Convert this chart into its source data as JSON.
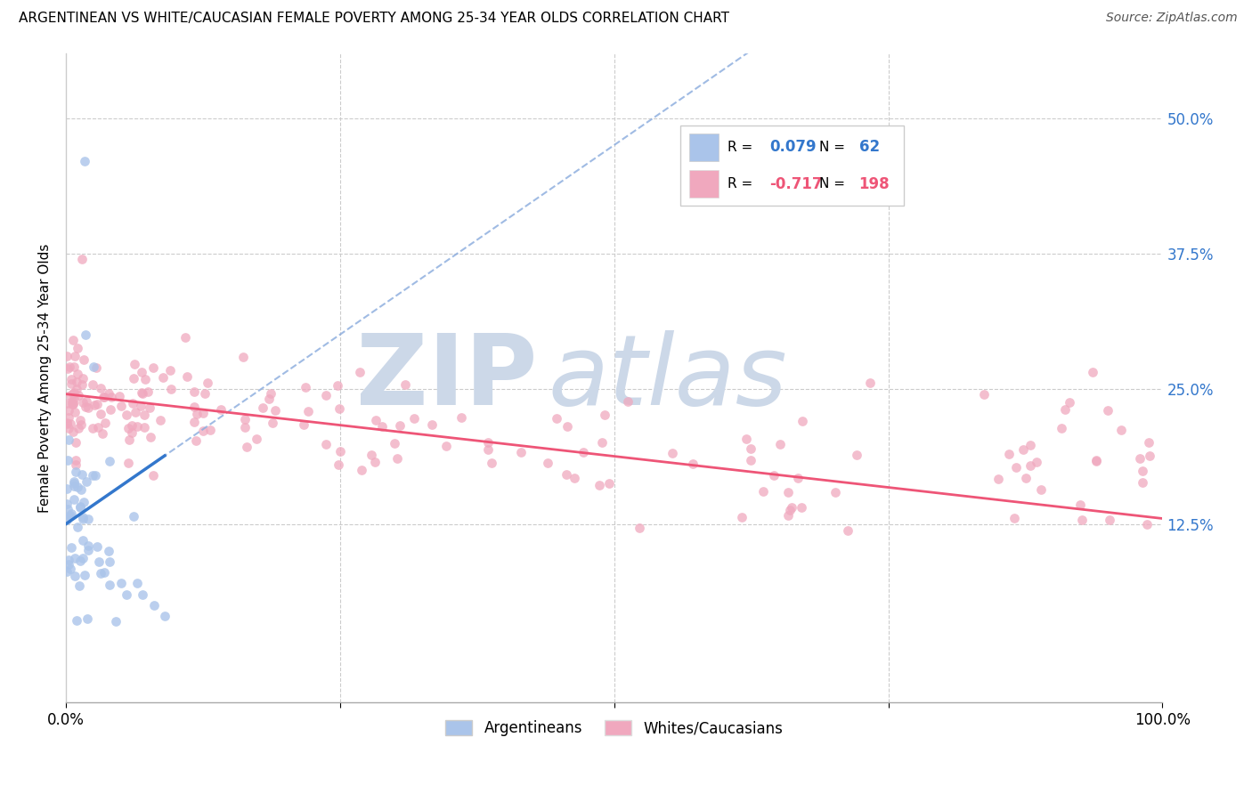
{
  "title": "ARGENTINEAN VS WHITE/CAUCASIAN FEMALE POVERTY AMONG 25-34 YEAR OLDS CORRELATION CHART",
  "source": "Source: ZipAtlas.com",
  "ylabel": "Female Poverty Among 25-34 Year Olds",
  "xlim": [
    0,
    1.0
  ],
  "ylim": [
    -0.04,
    0.56
  ],
  "ytick_positions": [
    0.125,
    0.25,
    0.375,
    0.5
  ],
  "ytick_labels": [
    "12.5%",
    "25.0%",
    "37.5%",
    "50.0%"
  ],
  "background_color": "#ffffff",
  "grid_color": "#cccccc",
  "watermark_zip": "ZIP",
  "watermark_atlas": "atlas",
  "watermark_color": "#ccd8e8",
  "argentinean_color": "#aac4ea",
  "white_color": "#f0a8be",
  "argentinean_line_color": "#3377cc",
  "white_line_color": "#ee5577",
  "dashed_line_color": "#88aadd",
  "R_arg": "0.079",
  "N_arg": "62",
  "R_white": "-0.717",
  "N_white": "198",
  "legend_label_arg": "Argentineans",
  "legend_label_white": "Whites/Caucasians",
  "legend_text_color": "#3377cc",
  "legend_r_color_arg": "#3377cc",
  "legend_r_color_white": "#ee5577"
}
